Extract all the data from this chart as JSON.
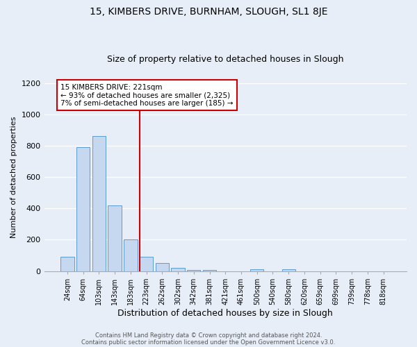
{
  "title_line1": "15, KIMBERS DRIVE, BURNHAM, SLOUGH, SL1 8JE",
  "title_line2": "Size of property relative to detached houses in Slough",
  "xlabel": "Distribution of detached houses by size in Slough",
  "ylabel": "Number of detached properties",
  "bar_labels": [
    "24sqm",
    "64sqm",
    "103sqm",
    "143sqm",
    "183sqm",
    "223sqm",
    "262sqm",
    "302sqm",
    "342sqm",
    "381sqm",
    "421sqm",
    "461sqm",
    "500sqm",
    "540sqm",
    "580sqm",
    "620sqm",
    "659sqm",
    "699sqm",
    "739sqm",
    "778sqm",
    "818sqm"
  ],
  "bar_heights": [
    90,
    790,
    860,
    420,
    200,
    90,
    50,
    20,
    5,
    5,
    0,
    0,
    10,
    0,
    10,
    0,
    0,
    0,
    0,
    0,
    0
  ],
  "bar_color": "#c5d8f0",
  "bar_edge_color": "#5b9bd5",
  "annotation_line1": "15 KIMBERS DRIVE: 221sqm",
  "annotation_line2": "← 93% of detached houses are smaller (2,325)",
  "annotation_line3": "7% of semi-detached houses are larger (185) →",
  "annotation_box_color": "#ffffff",
  "annotation_box_edge": "#cc0000",
  "vline_color": "#cc0000",
  "footer_line1": "Contains HM Land Registry data © Crown copyright and database right 2024.",
  "footer_line2": "Contains public sector information licensed under the Open Government Licence v3.0.",
  "ylim": [
    0,
    1200
  ],
  "yticks": [
    0,
    200,
    400,
    600,
    800,
    1000,
    1200
  ],
  "background_color": "#e8eef7",
  "plot_background": "#e8eef7",
  "title_fontsize": 10,
  "subtitle_fontsize": 9
}
